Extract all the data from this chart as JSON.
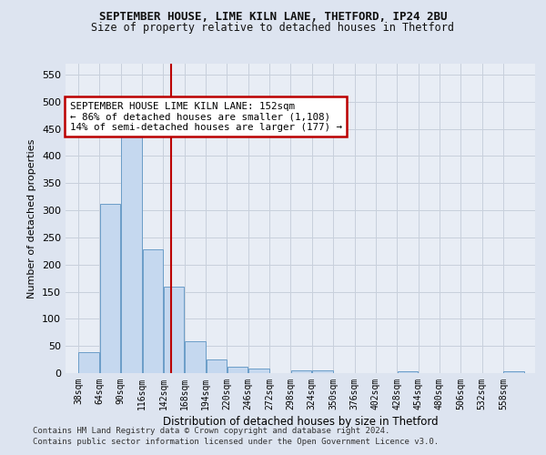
{
  "title1": "SEPTEMBER HOUSE, LIME KILN LANE, THETFORD, IP24 2BU",
  "title2": "Size of property relative to detached houses in Thetford",
  "xlabel": "Distribution of detached houses by size in Thetford",
  "ylabel": "Number of detached properties",
  "footnote1": "Contains HM Land Registry data © Crown copyright and database right 2024.",
  "footnote2": "Contains public sector information licensed under the Open Government Licence v3.0.",
  "bin_labels": [
    "38sqm",
    "64sqm",
    "90sqm",
    "116sqm",
    "142sqm",
    "168sqm",
    "194sqm",
    "220sqm",
    "246sqm",
    "272sqm",
    "298sqm",
    "324sqm",
    "350sqm",
    "376sqm",
    "402sqm",
    "428sqm",
    "454sqm",
    "480sqm",
    "506sqm",
    "532sqm",
    "558sqm"
  ],
  "bin_edges": [
    38,
    64,
    90,
    116,
    142,
    168,
    194,
    220,
    246,
    272,
    298,
    324,
    350,
    376,
    402,
    428,
    454,
    480,
    506,
    532,
    558
  ],
  "bar_heights": [
    38,
    311,
    457,
    228,
    160,
    58,
    25,
    11,
    8,
    0,
    5,
    5,
    0,
    0,
    0,
    4,
    0,
    0,
    0,
    0,
    4
  ],
  "bar_color": "#c5d8ef",
  "bar_edge_color": "#6b9dc8",
  "grid_color": "#c8d0dc",
  "property_size": 152,
  "vline_color": "#bb0000",
  "annotation_text": "SEPTEMBER HOUSE LIME KILN LANE: 152sqm\n← 86% of detached houses are smaller (1,108)\n14% of semi-detached houses are larger (177) →",
  "annotation_box_color": "#ffffff",
  "annotation_border_color": "#bb0000",
  "ylim": [
    0,
    570
  ],
  "yticks": [
    0,
    50,
    100,
    150,
    200,
    250,
    300,
    350,
    400,
    450,
    500,
    550
  ],
  "bg_color": "#dde4f0",
  "plot_bg_color": "#e8edf5"
}
